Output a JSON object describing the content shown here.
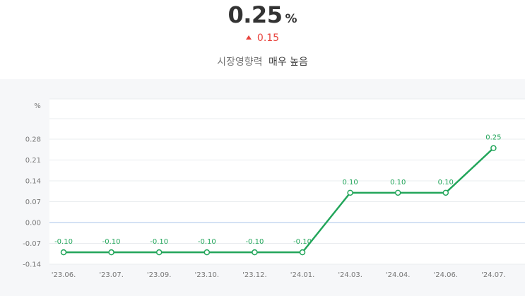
{
  "indicator": {
    "value": "0.25",
    "unit": "%",
    "change": "0.15",
    "impact_label": "시장영향력",
    "impact_level": "매우 높음"
  },
  "colors": {
    "line": "#22a55a",
    "up": "#e8423c",
    "zero_line": "#a9c4e8",
    "grid": "#e9ecef"
  },
  "chart_data": {
    "type": "line",
    "ylabel": "%",
    "ylim": [
      -0.14,
      0.28
    ],
    "yticks": [
      "0.28",
      "0.21",
      "0.14",
      "0.07",
      "0.00",
      "-0.07",
      "-0.14"
    ],
    "categories": [
      "'23.06.",
      "'23.07.",
      "'23.09.",
      "'23.10.",
      "'23.12.",
      "'24.01.",
      "'24.03.",
      "'24.04.",
      "'24.06.",
      "'24.07."
    ],
    "series": [
      {
        "values": [
          -0.1,
          -0.1,
          -0.1,
          -0.1,
          -0.1,
          -0.1,
          0.1,
          0.1,
          0.1,
          0.25
        ],
        "labels": [
          "-0.10",
          "-0.10",
          "-0.10",
          "-0.10",
          "-0.10",
          "-0.10",
          "0.10",
          "0.10",
          "0.10",
          "0.25"
        ]
      }
    ],
    "grid": true
  }
}
